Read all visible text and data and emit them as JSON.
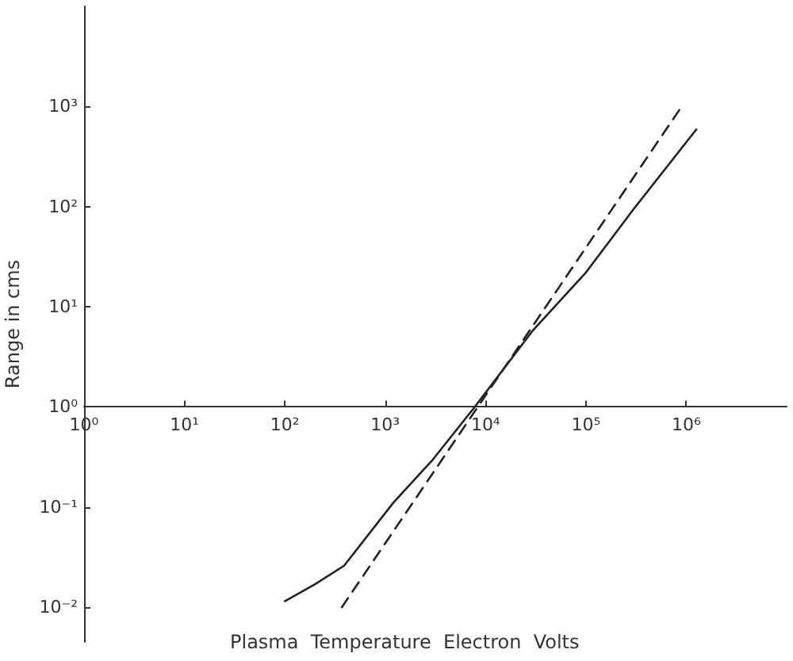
{
  "chart_data": {
    "type": "line",
    "xlabel": "Plasma  Temperature  Electron  Volts",
    "ylabel": "Range in cms",
    "log": "xy",
    "xlim": [
      1,
      10000000
    ],
    "ylim": [
      0.0045,
      10000
    ],
    "xticks": [
      {
        "value": 1,
        "label": "10⁰"
      },
      {
        "value": 10,
        "label": "10¹"
      },
      {
        "value": 100,
        "label": "10²"
      },
      {
        "value": 1000,
        "label": "10³"
      },
      {
        "value": 10000,
        "label": "10⁴"
      },
      {
        "value": 100000,
        "label": "10⁵"
      },
      {
        "value": 1000000,
        "label": "10⁶"
      }
    ],
    "yticks": [
      {
        "value": 0.01,
        "label": "10⁻²"
      },
      {
        "value": 0.1,
        "label": "10⁻¹"
      },
      {
        "value": 1,
        "label": "10⁰"
      },
      {
        "value": 10,
        "label": "10¹"
      },
      {
        "value": 100,
        "label": "10²"
      },
      {
        "value": 1000,
        "label": "10³"
      }
    ],
    "grid": false,
    "marker": "none",
    "series": [
      {
        "color": "#222222",
        "line_style": "solid",
        "x": [
          100,
          200,
          390,
          1200,
          3000,
          7800,
          30000,
          100000,
          300000,
          1260000
        ],
        "values": [
          0.0115,
          0.017,
          0.026,
          0.11,
          0.3,
          1,
          5.9,
          22,
          95,
          590
        ]
      },
      {
        "color": "#222222",
        "line_style": "dashed",
        "x": [
          370,
          900000
        ],
        "values": [
          0.01,
          1000
        ]
      }
    ]
  }
}
